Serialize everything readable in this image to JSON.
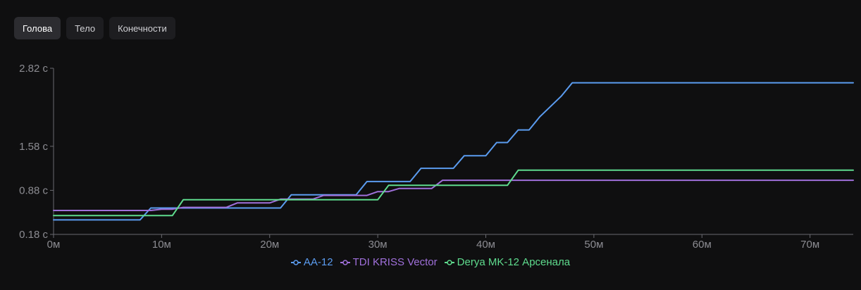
{
  "tabs": [
    {
      "label": "Голова",
      "active": true
    },
    {
      "label": "Тело",
      "active": false
    },
    {
      "label": "Конечности",
      "active": false
    }
  ],
  "chart_data": {
    "type": "line",
    "title": "",
    "xlabel": "",
    "ylabel": "",
    "x_range": [
      0,
      74
    ],
    "y_range": [
      0.18,
      2.82
    ],
    "x_ticks": [
      0,
      10,
      20,
      30,
      40,
      50,
      60,
      70
    ],
    "x_tick_labels": [
      "0м",
      "10м",
      "20м",
      "30м",
      "40м",
      "50м",
      "60м",
      "70м"
    ],
    "y_ticks": [
      0.18,
      0.88,
      1.58,
      2.82
    ],
    "y_tick_labels": [
      "0.18 с",
      "0.88 с",
      "1.58 с",
      "2.82 с"
    ],
    "grid": false,
    "legend_position": "bottom-center",
    "series": [
      {
        "name": "AA-12",
        "color": "#5b9cf0",
        "points": [
          [
            0,
            0.41
          ],
          [
            8,
            0.41
          ],
          [
            9,
            0.6
          ],
          [
            21,
            0.6
          ],
          [
            22,
            0.81
          ],
          [
            28,
            0.81
          ],
          [
            29,
            1.02
          ],
          [
            33,
            1.02
          ],
          [
            34,
            1.23
          ],
          [
            37,
            1.23
          ],
          [
            38,
            1.43
          ],
          [
            40,
            1.43
          ],
          [
            41,
            1.64
          ],
          [
            42,
            1.64
          ],
          [
            43,
            1.84
          ],
          [
            44,
            1.84
          ],
          [
            45,
            2.05
          ],
          [
            47,
            2.38
          ],
          [
            48,
            2.59
          ],
          [
            74,
            2.59
          ]
        ]
      },
      {
        "name": "TDI KRISS Vector",
        "color": "#a070db",
        "points": [
          [
            0,
            0.56
          ],
          [
            9,
            0.56
          ],
          [
            10,
            0.58
          ],
          [
            11,
            0.58
          ],
          [
            12,
            0.61
          ],
          [
            16,
            0.61
          ],
          [
            17,
            0.68
          ],
          [
            20,
            0.68
          ],
          [
            21,
            0.74
          ],
          [
            24,
            0.74
          ],
          [
            25,
            0.8
          ],
          [
            29,
            0.8
          ],
          [
            30,
            0.86
          ],
          [
            31,
            0.86
          ],
          [
            32,
            0.91
          ],
          [
            35,
            0.91
          ],
          [
            36,
            1.04
          ],
          [
            74,
            1.04
          ]
        ]
      },
      {
        "name": "Derya MK-12 Арсенала",
        "color": "#5fdc8e",
        "points": [
          [
            0,
            0.48
          ],
          [
            11,
            0.48
          ],
          [
            12,
            0.73
          ],
          [
            30,
            0.73
          ],
          [
            31,
            0.96
          ],
          [
            42,
            0.96
          ],
          [
            43,
            1.2
          ],
          [
            74,
            1.2
          ]
        ]
      }
    ]
  }
}
